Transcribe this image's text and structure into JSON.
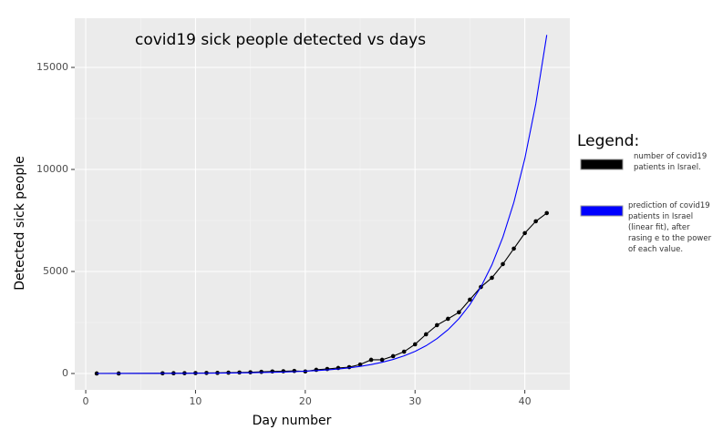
{
  "chart_data": {
    "type": "line",
    "title": "covid19 sick people detected vs days",
    "x_label": "Day number",
    "y_label": "Detected sick people",
    "legend_title": "Legend:",
    "x": [
      1,
      3,
      7,
      8,
      9,
      10,
      11,
      12,
      13,
      14,
      15,
      16,
      17,
      18,
      19,
      20,
      21,
      22,
      23,
      24,
      25,
      26,
      27,
      28,
      29,
      30,
      31,
      32,
      33,
      34,
      35,
      36,
      37,
      38,
      39,
      40,
      41,
      42
    ],
    "series": [
      {
        "name": "number of covid19 patients in Israel.",
        "color": "#000000",
        "markers": true,
        "values": [
          1,
          2,
          10,
          12,
          15,
          20,
          25,
          30,
          40,
          50,
          60,
          80,
          100,
          110,
          125,
          100,
          180,
          220,
          270,
          310,
          440,
          670,
          670,
          850,
          1070,
          1430,
          1920,
          2370,
          2680,
          3000,
          3620,
          4240,
          4690,
          5360,
          6120,
          6880,
          7460,
          7860
        ]
      },
      {
        "name": "prediction of covid19 patients in Israel (linear fit), after rasing e to the power of each value.",
        "color": "#0000ff",
        "markers": false,
        "values": [
          0,
          1,
          6,
          7,
          9,
          12,
          15,
          18,
          23,
          29,
          36,
          45,
          56,
          71,
          89,
          112,
          140,
          176,
          221,
          277,
          348,
          436,
          548,
          688,
          863,
          1084,
          1360,
          1708,
          2144,
          2691,
          3378,
          4240,
          5322,
          6681,
          8387,
          10528,
          13216,
          16590
        ]
      }
    ],
    "xlim": [
      -1.0,
      44.1
    ],
    "ylim": [
      -804,
      17411
    ],
    "xticks": [
      0,
      10,
      20,
      30,
      40
    ],
    "yticks": [
      0,
      5000,
      10000,
      15000
    ],
    "grid": true
  }
}
